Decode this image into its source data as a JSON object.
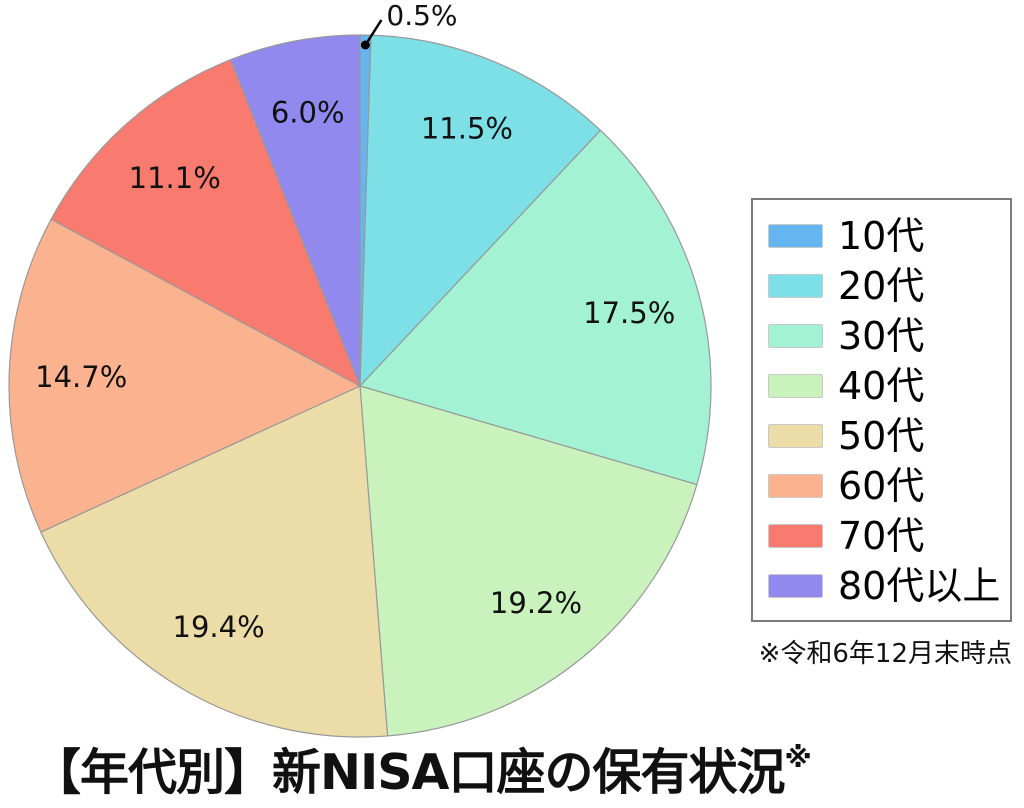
{
  "title": {
    "text": "【年代別】新NISA口座の保有状況",
    "superscript": "※"
  },
  "footnote": "※令和6年12月末時点",
  "chart_data": {
    "type": "pie",
    "categories": [
      "10代",
      "20代",
      "30代",
      "40代",
      "50代",
      "60代",
      "70代",
      "80代以上"
    ],
    "values": [
      0.5,
      11.5,
      17.5,
      19.2,
      19.4,
      14.7,
      11.1,
      6.0
    ],
    "labels": [
      "0.5%",
      "11.5%",
      "17.5%",
      "19.2%",
      "19.4%",
      "14.7%",
      "11.1%",
      "6.0%"
    ],
    "colors": [
      "#64B5F0",
      "#7CE0E6",
      "#A2F2D3",
      "#C9F2BC",
      "#EBDCA8",
      "#FBB28F",
      "#F97B70",
      "#9289EE"
    ],
    "edge_color": "#999999",
    "background_color": "#ffffff",
    "start_angle_deg": 90,
    "direction": "clockwise",
    "legend_position": "right",
    "outside_label_threshold_pct": 1.0
  }
}
